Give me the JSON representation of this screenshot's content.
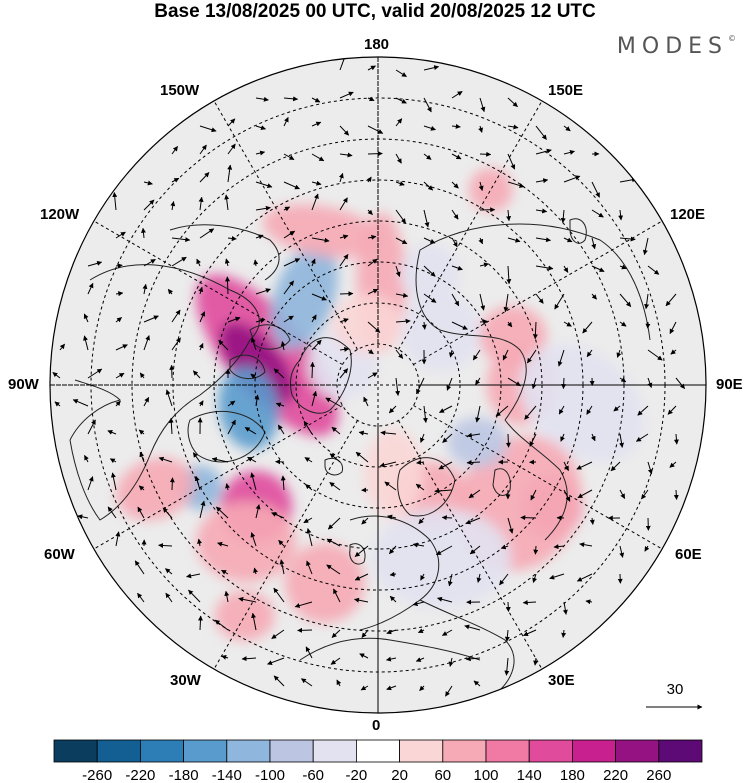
{
  "title": "Base 13/08/2025 00 UTC, valid 20/08/2025 12 UTC",
  "brand": "MODES",
  "brand_mark": "©",
  "longitude_labels": {
    "top": "180",
    "bottom": "0",
    "left": "90W",
    "right": "90E",
    "upper_left_1": "150W",
    "upper_left_2": "120W",
    "upper_right_1": "150E",
    "upper_right_2": "120E",
    "lower_left_1": "60W",
    "lower_left_2": "30W",
    "lower_right_1": "60E",
    "lower_right_2": "30E"
  },
  "wind_reference": {
    "value": "30"
  },
  "colorbar": {
    "ticks": [
      "-260",
      "-220",
      "-180",
      "-140",
      "-100",
      "-60",
      "-20",
      "20",
      "60",
      "100",
      "140",
      "180",
      "220",
      "260"
    ],
    "colors": [
      "#0b3e5e",
      "#135f93",
      "#2d7eb7",
      "#5a9bcd",
      "#8fb6dc",
      "#bcc6e3",
      "#e2e2f1",
      "#ffffff",
      "#fbd6d6",
      "#f6aab5",
      "#f07aa4",
      "#e04b9c",
      "#c8218f",
      "#951283",
      "#5e0a76"
    ]
  },
  "anomalies": [
    {
      "lon": -105,
      "lat": 62,
      "value": 160,
      "rx": 40,
      "ry": 100,
      "rot": -40
    },
    {
      "lon": -100,
      "lat": 60,
      "value": 220,
      "rx": 24,
      "ry": 50,
      "rot": -40
    },
    {
      "lon": -80,
      "lat": 58,
      "value": -160,
      "rx": 30,
      "ry": 42,
      "rot": -10
    },
    {
      "lon": -60,
      "lat": 40,
      "value": -120,
      "rx": 22,
      "ry": 22,
      "rot": 0
    },
    {
      "lon": -45,
      "lat": 48,
      "value": 160,
      "rx": 36,
      "ry": 36,
      "rot": 0
    },
    {
      "lon": -40,
      "lat": 40,
      "value": 60,
      "rx": 50,
      "ry": 40,
      "rot": 0
    },
    {
      "lon": -65,
      "lat": 30,
      "value": 60,
      "rx": 40,
      "ry": 30,
      "rot": -20
    },
    {
      "lon": -140,
      "lat": 62,
      "value": -120,
      "rx": 30,
      "ry": 55,
      "rot": 20
    },
    {
      "lon": -160,
      "lat": 50,
      "value": 60,
      "rx": 60,
      "ry": 25,
      "rot": 10
    },
    {
      "lon": 178,
      "lat": 65,
      "value": 80,
      "rx": 25,
      "ry": 70,
      "rot": 0
    },
    {
      "lon": 155,
      "lat": 60,
      "value": -40,
      "rx": 30,
      "ry": 30,
      "rot": 0
    },
    {
      "lon": 150,
      "lat": 35,
      "value": 60,
      "rx": 22,
      "ry": 22,
      "rot": 0
    },
    {
      "lon": 110,
      "lat": 55,
      "value": 70,
      "rx": 34,
      "ry": 30,
      "rot": 0
    },
    {
      "lon": 90,
      "lat": 55,
      "value": 60,
      "rx": 35,
      "ry": 40,
      "rot": 0
    },
    {
      "lon": 85,
      "lat": 40,
      "value": -50,
      "rx": 70,
      "ry": 50,
      "rot": 40
    },
    {
      "lon": 55,
      "lat": 38,
      "value": 130,
      "rx": 30,
      "ry": 30,
      "rot": 0
    },
    {
      "lon": 50,
      "lat": 45,
      "value": 70,
      "rx": 60,
      "ry": 70,
      "rot": 30
    },
    {
      "lon": 60,
      "lat": 62,
      "value": -100,
      "rx": 30,
      "ry": 25,
      "rot": 0
    },
    {
      "lon": 25,
      "lat": 60,
      "value": 70,
      "rx": 40,
      "ry": 35,
      "rot": 0
    },
    {
      "lon": 20,
      "lat": 45,
      "value": -60,
      "rx": 70,
      "ry": 50,
      "rot": 0
    },
    {
      "lon": 10,
      "lat": 68,
      "value": 50,
      "rx": 30,
      "ry": 45,
      "rot": 0
    },
    {
      "lon": -15,
      "lat": 40,
      "value": 60,
      "rx": 40,
      "ry": 40,
      "rot": 0
    },
    {
      "lon": -30,
      "lat": 25,
      "value": 60,
      "rx": 30,
      "ry": 25,
      "rot": 0
    },
    {
      "lon": 130,
      "lat": 70,
      "value": -60,
      "rx": 40,
      "ry": 40,
      "rot": 0
    },
    {
      "lon": -120,
      "lat": 80,
      "value": -50,
      "rx": 35,
      "ry": 35,
      "rot": 0
    },
    {
      "lon": -170,
      "lat": 75,
      "value": 50,
      "rx": 35,
      "ry": 30,
      "rot": 0
    }
  ]
}
